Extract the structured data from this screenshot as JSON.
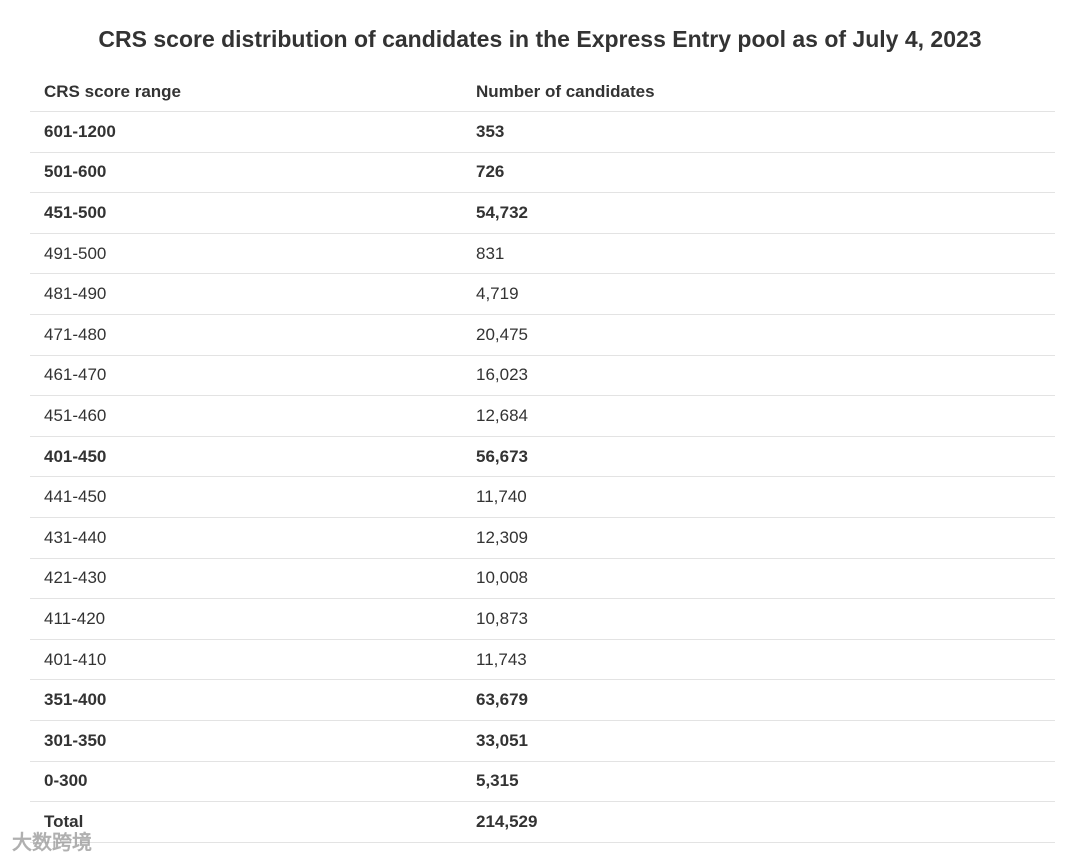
{
  "title": "CRS score distribution of candidates in the Express Entry pool as of July 4, 2023",
  "table": {
    "header": [
      "CRS score range",
      "Number of candidates"
    ],
    "rows": [
      {
        "cells": [
          "601-1200",
          "353"
        ],
        "bold": true
      },
      {
        "cells": [
          "501-600",
          "726"
        ],
        "bold": true
      },
      {
        "cells": [
          "451-500",
          "54,732"
        ],
        "bold": true
      },
      {
        "cells": [
          "491-500",
          "831"
        ],
        "bold": false
      },
      {
        "cells": [
          "481-490",
          "4,719"
        ],
        "bold": false
      },
      {
        "cells": [
          "471-480",
          "20,475"
        ],
        "bold": false
      },
      {
        "cells": [
          "461-470",
          "16,023"
        ],
        "bold": false
      },
      {
        "cells": [
          "451-460",
          "12,684"
        ],
        "bold": false
      },
      {
        "cells": [
          "401-450",
          "56,673"
        ],
        "bold": true
      },
      {
        "cells": [
          "441-450",
          "11,740"
        ],
        "bold": false
      },
      {
        "cells": [
          "431-440",
          "12,309"
        ],
        "bold": false
      },
      {
        "cells": [
          "421-430",
          "10,008"
        ],
        "bold": false
      },
      {
        "cells": [
          "411-420",
          "10,873"
        ],
        "bold": false
      },
      {
        "cells": [
          "401-410",
          "11,743"
        ],
        "bold": false
      },
      {
        "cells": [
          "351-400",
          "63,679"
        ],
        "bold": true
      },
      {
        "cells": [
          "301-350",
          "33,051"
        ],
        "bold": true
      },
      {
        "cells": [
          "0-300",
          "5,315"
        ],
        "bold": true
      },
      {
        "cells": [
          "Total",
          "214,529"
        ],
        "bold": true
      }
    ]
  },
  "watermark": "大数跨境"
}
